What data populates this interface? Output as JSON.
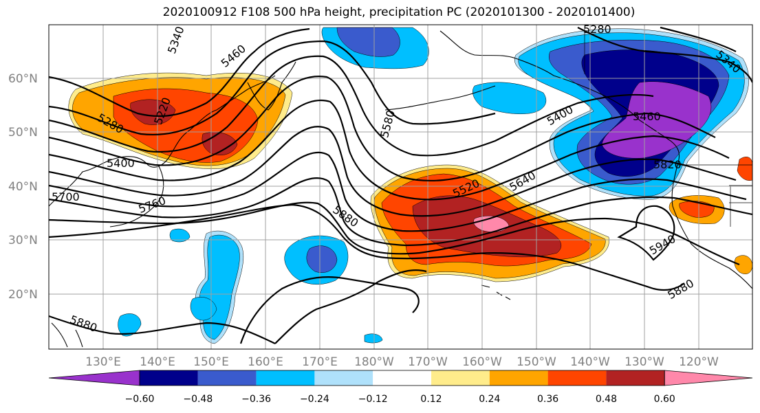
{
  "title": "2020100912 F108 500 hPa height, precipitation PC (2020101300 - 2020101400)",
  "map": {
    "lat_labels": [
      "60°N",
      "50°N",
      "40°N",
      "30°N",
      "20°N"
    ],
    "lon_labels": [
      "130°E",
      "140°E",
      "150°E",
      "160°E",
      "170°E",
      "180°W",
      "170°W",
      "160°W",
      "150°W",
      "140°W",
      "130°W",
      "120°W"
    ]
  },
  "contour_labels": [
    "5340",
    "5460",
    "5280",
    "5220",
    "5400",
    "5700",
    "5760",
    "5580",
    "5880",
    "5520",
    "5640",
    "5400",
    "5460",
    "5820",
    "5940",
    "5880",
    "5880",
    "5280",
    "5340"
  ],
  "colorbar": {
    "colors": [
      "#9932cc",
      "#00008b",
      "#3a5bcd",
      "#00bfff",
      "#afe1fb",
      "#ffffff",
      "#ffec8b",
      "#ffa500",
      "#ff4500",
      "#b22222",
      "#ff88aa"
    ],
    "tick_labels": [
      "−0.60",
      "−0.48",
      "−0.36",
      "−0.24",
      "−0.12",
      "0.12",
      "0.24",
      "0.36",
      "0.48",
      "0.60"
    ]
  },
  "colors": {
    "grid": "#a0a0a0",
    "contour": "#000000",
    "axis_label": "#808080"
  }
}
